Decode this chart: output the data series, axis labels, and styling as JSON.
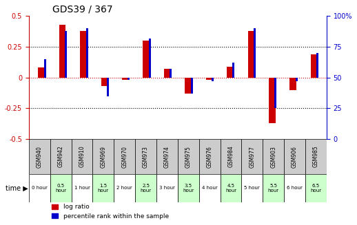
{
  "title": "GDS39 / 367",
  "samples": [
    "GSM940",
    "GSM942",
    "GSM910",
    "GSM969",
    "GSM970",
    "GSM973",
    "GSM974",
    "GSM975",
    "GSM976",
    "GSM984",
    "GSM977",
    "GSM903",
    "GSM906",
    "GSM985"
  ],
  "time_labels": [
    "0 hour",
    "0.5\nhour",
    "1 hour",
    "1.5\nhour",
    "2 hour",
    "2.5\nhour",
    "3 hour",
    "3.5\nhour",
    "4 hour",
    "4.5\nhour",
    "5 hour",
    "5.5\nhour",
    "6 hour",
    "6.5\nhour"
  ],
  "log_ratio": [
    0.08,
    0.43,
    0.38,
    -0.07,
    -0.02,
    0.3,
    0.07,
    -0.13,
    -0.02,
    0.09,
    0.38,
    -0.37,
    -0.1,
    0.19
  ],
  "percentile": [
    65,
    88,
    90,
    35,
    48,
    82,
    57,
    37,
    47,
    62,
    90,
    25,
    47,
    70
  ],
  "bar_color_red": "#cc0000",
  "bar_color_blue": "#0000cc",
  "bg_color_white": "#ffffff",
  "bg_color_light_green": "#ccffcc",
  "bg_color_gray": "#cccccc",
  "left_ytick_vals": [
    0.5,
    0.25,
    0.0,
    -0.25,
    -0.5
  ],
  "left_ytick_labels": [
    "0.5",
    "0.25",
    "0",
    "-0.25",
    "-0.5"
  ],
  "right_ytick_vals": [
    100,
    75,
    50,
    25,
    0
  ],
  "right_ytick_labels": [
    "100%",
    "75",
    "50",
    "25",
    "0"
  ],
  "ylim_left": [
    -0.5,
    0.5
  ],
  "ylim_right": [
    0,
    100
  ],
  "zero_line_color": "#cc0000",
  "bar_width": 0.35,
  "time_bg_colors": [
    "#ffffff",
    "#ccffcc",
    "#ffffff",
    "#ccffcc",
    "#ffffff",
    "#ccffcc",
    "#ffffff",
    "#ccffcc",
    "#ffffff",
    "#ccffcc",
    "#ffffff",
    "#ccffcc",
    "#ffffff",
    "#ccffcc"
  ]
}
